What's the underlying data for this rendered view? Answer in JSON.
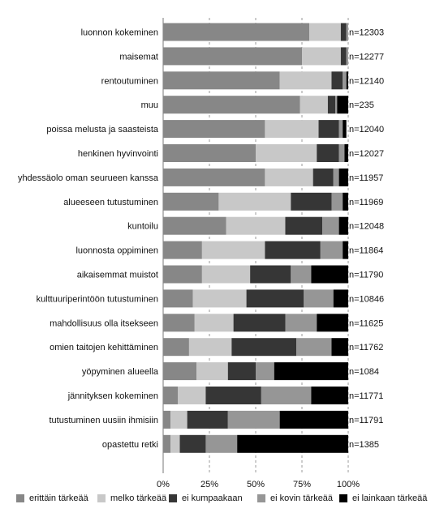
{
  "chart_data": {
    "type": "bar",
    "orientation": "horizontal",
    "stacked": true,
    "categories": [
      "luonnon kokeminen",
      "maisemat",
      "rentoutuminen",
      "muu",
      "poissa melusta ja saasteista",
      "henkinen hyvinvointi",
      "yhdessäolo oman seurueen kanssa",
      "alueeseen tutustuminen",
      "kuntoilu",
      "luonnosta oppiminen",
      "aikaisemmat muistot",
      "kulttuuriperintöön tutustuminen",
      "mahdollisuus olla itsekseen",
      "omien taitojen kehittäminen",
      "yöpyminen alueella",
      "jännityksen kokeminen",
      "tutustuminen uusiin ihmisiin",
      "opastettu retki"
    ],
    "n_labels": [
      "n=12303",
      "n=12277",
      "n=12140",
      "n=235",
      "n=12040",
      "n=12027",
      "n=11957",
      "n=11969",
      "n=12048",
      "n=11864",
      "n=11790",
      "n=10846",
      "n=11625",
      "n=11762",
      "n=1084",
      "n=11771",
      "n=11791",
      "n=1385"
    ],
    "series": [
      {
        "name": "erittäin tärkeää",
        "color": "#878787",
        "values": [
          79,
          75,
          63,
          74,
          55,
          50,
          55,
          30,
          34,
          21,
          21,
          16,
          17,
          14,
          18,
          8,
          4,
          4
        ]
      },
      {
        "name": "melko tärkeää",
        "color": "#c8c8c8",
        "values": [
          17,
          21,
          28,
          15,
          29,
          33,
          26,
          39,
          32,
          34,
          26,
          29,
          21,
          23,
          17,
          15,
          9,
          5
        ]
      },
      {
        "name": "ei kumpaakaan",
        "color": "#363636",
        "values": [
          3,
          3,
          6,
          4,
          11,
          12,
          11,
          22,
          20,
          30,
          22,
          31,
          28,
          35,
          15,
          30,
          22,
          14
        ]
      },
      {
        "name": "ei kovin tärkeää",
        "color": "#969696",
        "values": [
          1,
          1,
          2,
          1,
          2,
          3,
          3,
          6,
          9,
          12,
          11,
          16,
          17,
          19,
          10,
          27,
          28,
          17
        ]
      },
      {
        "name": "ei lainkaan tärkeää",
        "color": "#000000",
        "values": [
          0,
          0,
          1,
          6,
          2,
          2,
          5,
          3,
          5,
          3,
          20,
          8,
          17,
          9,
          40,
          20,
          37,
          60
        ]
      }
    ],
    "x_ticks": [
      "0%",
      "25%",
      "50%",
      "75%",
      "100%"
    ],
    "xlim": [
      0,
      100
    ],
    "legend_position": "bottom",
    "grid": "vertical-dashed"
  }
}
